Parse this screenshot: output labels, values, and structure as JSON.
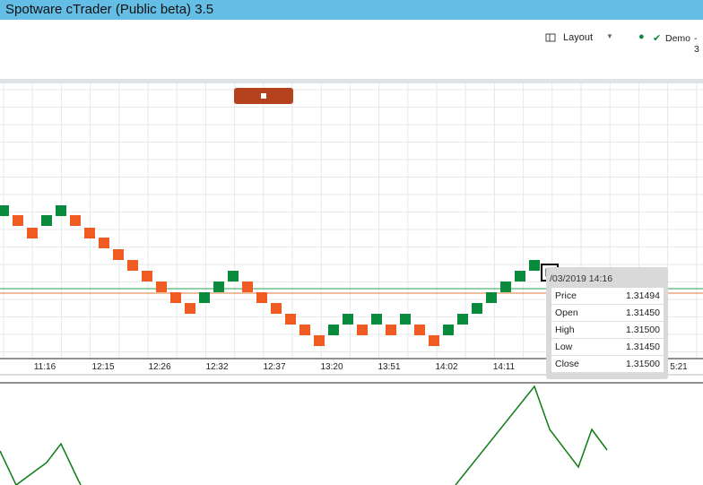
{
  "window": {
    "title": "Spotware cTrader (Public beta) 3.5"
  },
  "toolbar": {
    "layout": "Layout",
    "account": "Demo",
    "account_suffix": "- 3"
  },
  "time_axis": [
    "11:16",
    "12:15",
    "12:26",
    "12:32",
    "12:37",
    "13:20",
    "13:51",
    "14:02",
    "14:11",
    "5:21"
  ],
  "tooltip": {
    "header": "/03/2019 14:16",
    "rows": [
      [
        "Price",
        "1.31494"
      ],
      [
        "Open",
        "1.31450"
      ],
      [
        "High",
        "1.31500"
      ],
      [
        "Low",
        "1.31450"
      ],
      [
        "Close",
        "1.31500"
      ]
    ]
  }
}
